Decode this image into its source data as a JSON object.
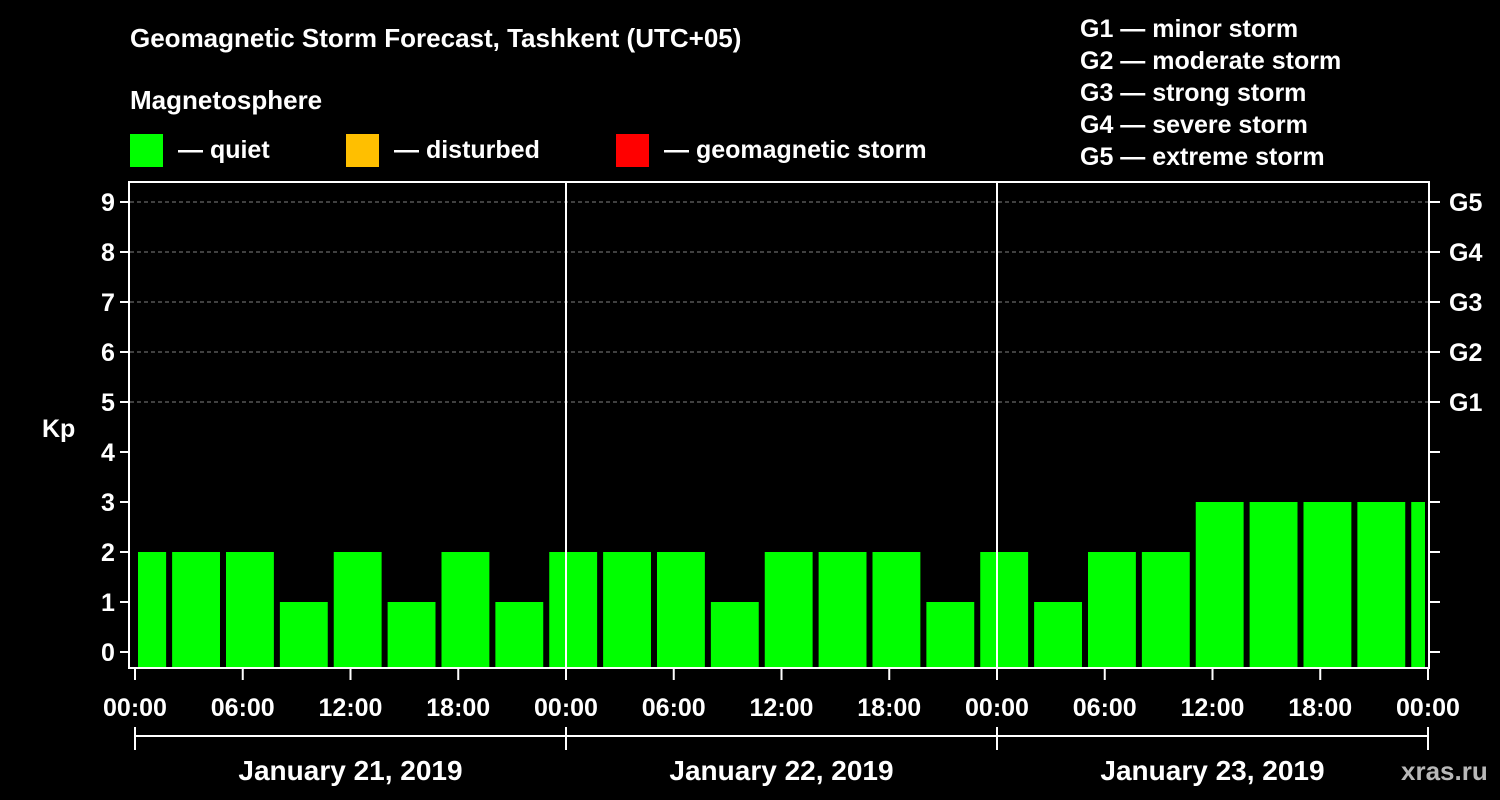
{
  "colors": {
    "background": "#000000",
    "quiet": "#00ff00",
    "disturbed": "#ffbf00",
    "storm": "#ff0000",
    "axis": "#ffffff",
    "grid": "#808080",
    "watermark": "#b8b8b8"
  },
  "watermark": "xras.ru",
  "chart_data": {
    "type": "bar",
    "title": "Geomagnetic Storm Forecast, Tashkent (UTC+05)",
    "legend_title": "Magnetosphere",
    "legend": [
      {
        "label": "— quiet",
        "color": "#00ff00"
      },
      {
        "label": "— disturbed",
        "color": "#ffbf00"
      },
      {
        "label": "— geomagnetic storm",
        "color": "#ff0000"
      }
    ],
    "g_scale": [
      "G1 — minor storm",
      "G2 — moderate storm",
      "G3 — strong storm",
      "G4 — severe storm",
      "G5 — extreme storm"
    ],
    "ylabel": "Kp",
    "ylim": [
      0,
      9
    ],
    "yticks": [
      "0",
      "1",
      "2",
      "3",
      "4",
      "5",
      "6",
      "7",
      "8",
      "9"
    ],
    "right_axis_labels": [
      {
        "kp": 5,
        "label": "G1"
      },
      {
        "kp": 6,
        "label": "G2"
      },
      {
        "kp": 7,
        "label": "G3"
      },
      {
        "kp": 8,
        "label": "G4"
      },
      {
        "kp": 9,
        "label": "G5"
      }
    ],
    "grid_kp": [
      5,
      6,
      7,
      8,
      9
    ],
    "xlim_hours": [
      0,
      72
    ],
    "xticks": [
      {
        "hour": 0,
        "label": "00:00"
      },
      {
        "hour": 6,
        "label": "06:00"
      },
      {
        "hour": 12,
        "label": "12:00"
      },
      {
        "hour": 18,
        "label": "18:00"
      },
      {
        "hour": 24,
        "label": "00:00"
      },
      {
        "hour": 30,
        "label": "06:00"
      },
      {
        "hour": 36,
        "label": "12:00"
      },
      {
        "hour": 42,
        "label": "18:00"
      },
      {
        "hour": 48,
        "label": "00:00"
      },
      {
        "hour": 54,
        "label": "06:00"
      },
      {
        "hour": 60,
        "label": "12:00"
      },
      {
        "hour": 66,
        "label": "18:00"
      },
      {
        "hour": 72,
        "label": "00:00"
      }
    ],
    "day_separators_hours": [
      24,
      48
    ],
    "dates": [
      {
        "label": "January 21, 2019",
        "start_hour": 0,
        "end_hour": 24
      },
      {
        "label": "January 22, 2019",
        "start_hour": 24,
        "end_hour": 48
      },
      {
        "label": "January 23, 2019",
        "start_hour": 48,
        "end_hour": 72
      }
    ],
    "series": [
      {
        "bars": [
          {
            "start_hour": 0,
            "end_hour": 1.9,
            "kp": 2
          },
          {
            "start_hour": 1.9,
            "end_hour": 4.9,
            "kp": 2
          },
          {
            "start_hour": 4.9,
            "end_hour": 7.9,
            "kp": 2
          },
          {
            "start_hour": 7.9,
            "end_hour": 10.9,
            "kp": 1
          },
          {
            "start_hour": 10.9,
            "end_hour": 13.9,
            "kp": 2
          },
          {
            "start_hour": 13.9,
            "end_hour": 16.9,
            "kp": 1
          },
          {
            "start_hour": 16.9,
            "end_hour": 19.9,
            "kp": 2
          },
          {
            "start_hour": 19.9,
            "end_hour": 22.9,
            "kp": 1
          },
          {
            "start_hour": 22.9,
            "end_hour": 25.9,
            "kp": 2
          },
          {
            "start_hour": 25.9,
            "end_hour": 28.9,
            "kp": 2
          },
          {
            "start_hour": 28.9,
            "end_hour": 31.9,
            "kp": 2
          },
          {
            "start_hour": 31.9,
            "end_hour": 34.9,
            "kp": 1
          },
          {
            "start_hour": 34.9,
            "end_hour": 37.9,
            "kp": 2
          },
          {
            "start_hour": 37.9,
            "end_hour": 40.9,
            "kp": 2
          },
          {
            "start_hour": 40.9,
            "end_hour": 43.9,
            "kp": 2
          },
          {
            "start_hour": 43.9,
            "end_hour": 46.9,
            "kp": 1
          },
          {
            "start_hour": 46.9,
            "end_hour": 49.9,
            "kp": 2
          },
          {
            "start_hour": 49.9,
            "end_hour": 52.9,
            "kp": 1
          },
          {
            "start_hour": 52.9,
            "end_hour": 55.9,
            "kp": 2
          },
          {
            "start_hour": 55.9,
            "end_hour": 58.9,
            "kp": 2
          },
          {
            "start_hour": 58.9,
            "end_hour": 61.9,
            "kp": 3
          },
          {
            "start_hour": 61.9,
            "end_hour": 64.9,
            "kp": 3
          },
          {
            "start_hour": 64.9,
            "end_hour": 67.9,
            "kp": 3
          },
          {
            "start_hour": 67.9,
            "end_hour": 70.9,
            "kp": 3
          },
          {
            "start_hour": 70.9,
            "end_hour": 72,
            "kp": 3
          }
        ]
      }
    ]
  }
}
